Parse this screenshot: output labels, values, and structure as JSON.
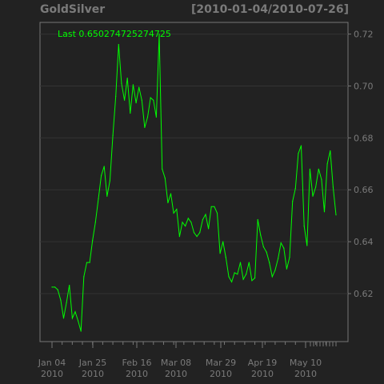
{
  "header": {
    "title": "GoldSilver",
    "date_range": "[2010-01-04/2010-07-26]"
  },
  "last_label": "Last 0.650274725274725",
  "colors": {
    "background": "#222222",
    "series": "#00ff00",
    "text": "#7a7a7a",
    "grid": "#333333",
    "axis": "#777777"
  },
  "chart_data": {
    "type": "line",
    "title": "GoldSilver",
    "subtitle": "[2010-01-04/2010-07-26]",
    "series": [
      {
        "values": [
          0.6225,
          0.6225,
          0.6215,
          0.6175,
          0.6105,
          0.6165,
          0.6232,
          0.6105,
          0.613,
          0.6095,
          0.6055,
          0.6265,
          0.632,
          0.632,
          0.6405,
          0.6475,
          0.6565,
          0.6655,
          0.669,
          0.6575,
          0.6635,
          0.681,
          0.696,
          0.716,
          0.701,
          0.6945,
          0.703,
          0.6895,
          0.7005,
          0.6935,
          0.6995,
          0.6945,
          0.684,
          0.688,
          0.6955,
          0.6945,
          0.688,
          0.72,
          0.668,
          0.6645,
          0.655,
          0.6585,
          0.651,
          0.6525,
          0.642,
          0.6475,
          0.646,
          0.649,
          0.6475,
          0.6435,
          0.642,
          0.6435,
          0.6485,
          0.6505,
          0.645,
          0.6535,
          0.6535,
          0.651,
          0.6355,
          0.64,
          0.634,
          0.6265,
          0.6245,
          0.628,
          0.6275,
          0.632,
          0.6255,
          0.6275,
          0.632,
          0.625,
          0.626,
          0.6485,
          0.6425,
          0.638,
          0.636,
          0.632,
          0.6265,
          0.629,
          0.6335,
          0.6395,
          0.6375,
          0.6295,
          0.634,
          0.6555,
          0.6605,
          0.674,
          0.677,
          0.646,
          0.6385,
          0.668,
          0.6575,
          0.661,
          0.668,
          0.664,
          0.6515,
          0.67,
          0.675,
          0.661,
          0.6503
        ]
      }
    ],
    "x_range": [
      "2010-01-04",
      "2010-07-26"
    ],
    "x_ticks": [
      {
        "date": "Jan 04",
        "year": "2010"
      },
      {
        "date": "Jan 25",
        "year": "2010"
      },
      {
        "date": "Feb 16",
        "year": "2010"
      },
      {
        "date": "Mar 08",
        "year": "2010"
      },
      {
        "date": "Mar 29",
        "year": "2010"
      },
      {
        "date": "Apr 19",
        "year": "2010"
      },
      {
        "date": "May 10",
        "year": "2010"
      }
    ],
    "y_ticks": [
      "0.62",
      "0.64",
      "0.66",
      "0.68",
      "0.70",
      "0.72"
    ],
    "ylim": [
      0.6015,
      0.7245
    ],
    "grid": true,
    "legend": "top-left"
  }
}
